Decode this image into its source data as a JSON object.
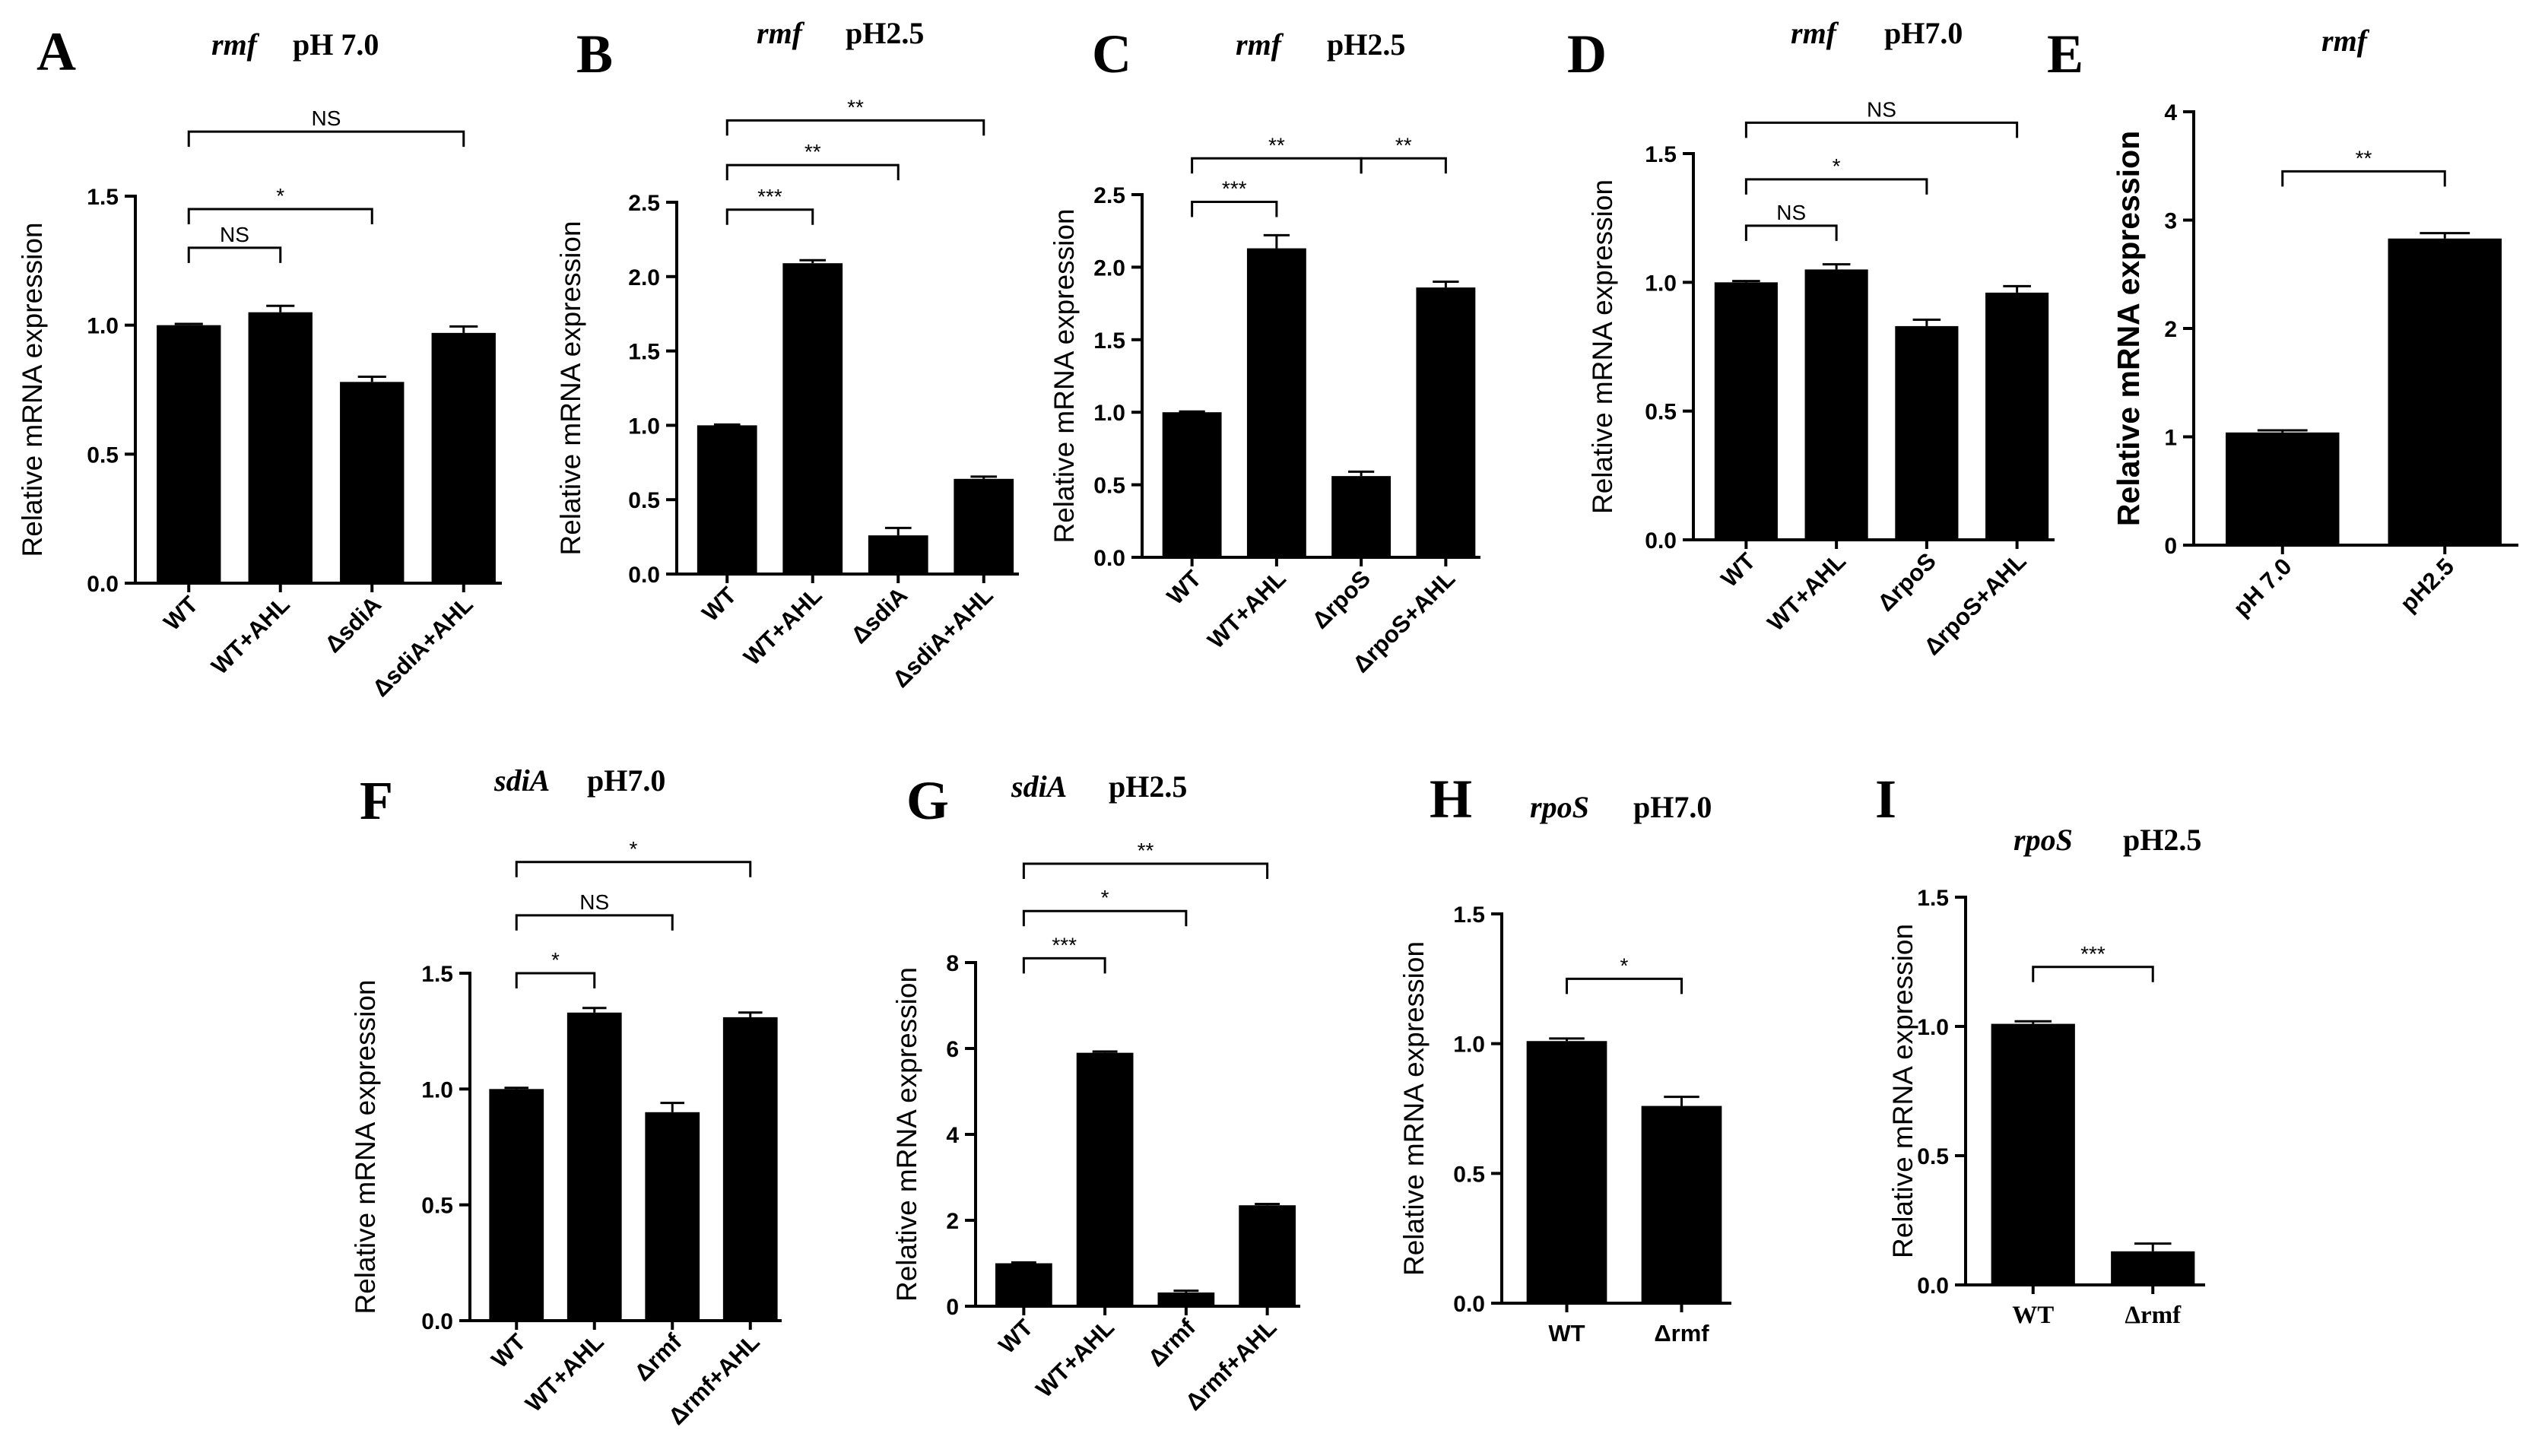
{
  "chart_data": [
    {
      "type": "bar",
      "letter": "A",
      "gene": "rmf",
      "condition": "pH 7.0",
      "categories": [
        "WT",
        "WT+AHL",
        "ΔsdiA",
        "ΔsdiA+AHL"
      ],
      "values": [
        1.0,
        1.05,
        0.78,
        0.97
      ],
      "errors": [
        0.005,
        0.025,
        0.02,
        0.025
      ],
      "ylabel": "Relative mRNA expression",
      "ylim": [
        0,
        1.5
      ],
      "yticks": [
        "0.0",
        "0.5",
        "1.0",
        "1.5"
      ],
      "comparisons": [
        {
          "from": 0,
          "to": 1,
          "label": "NS",
          "level": 1.3
        },
        {
          "from": 0,
          "to": 2,
          "label": "*",
          "level": 1.45
        },
        {
          "from": 0,
          "to": 3,
          "label": "NS",
          "level": 1.75
        }
      ]
    },
    {
      "type": "bar",
      "letter": "B",
      "gene": "rmf",
      "condition": "pH2.5",
      "categories": [
        "WT",
        "WT+AHL",
        "ΔsdiA",
        "ΔsdiA+AHL"
      ],
      "values": [
        1.0,
        2.09,
        0.26,
        0.64
      ],
      "errors": [
        0.005,
        0.02,
        0.05,
        0.015
      ],
      "ylabel": "Relative mRNA expression",
      "ylim": [
        0,
        2.5
      ],
      "yticks": [
        "0.0",
        "0.5",
        "1.0",
        "1.5",
        "2.0",
        "2.5"
      ],
      "comparisons": [
        {
          "from": 0,
          "to": 1,
          "label": "***",
          "level": 2.45
        },
        {
          "from": 0,
          "to": 2,
          "label": "**",
          "level": 2.75
        },
        {
          "from": 0,
          "to": 3,
          "label": "**",
          "level": 3.05
        }
      ]
    },
    {
      "type": "bar",
      "letter": "C",
      "gene": "rmf",
      "condition": "pH2.5",
      "categories": [
        "WT",
        "WT+AHL",
        "ΔrpoS",
        "ΔrpoS+AHL"
      ],
      "values": [
        1.0,
        2.13,
        0.56,
        1.86
      ],
      "errors": [
        0.005,
        0.09,
        0.03,
        0.04
      ],
      "ylabel": "Relative mRNA expression",
      "ylim": [
        0,
        2.5
      ],
      "yticks": [
        "0.0",
        "0.5",
        "1.0",
        "1.5",
        "2.0",
        "2.5"
      ],
      "comparisons": [
        {
          "from": 0,
          "to": 1,
          "label": "***",
          "level": 2.45
        },
        {
          "from": 0,
          "to": 2,
          "label": "**",
          "level": 2.75
        },
        {
          "from": 2,
          "to": 3,
          "label": "**",
          "level": 2.75
        }
      ]
    },
    {
      "type": "bar",
      "letter": "D",
      "gene": "rmf",
      "condition": "pH7.0",
      "categories": [
        "WT",
        "WT+AHL",
        "ΔrpoS",
        "ΔrpoS+AHL"
      ],
      "values": [
        1.0,
        1.05,
        0.83,
        0.96
      ],
      "errors": [
        0.005,
        0.02,
        0.025,
        0.025
      ],
      "ylabel": "Relative mRNA expression",
      "ylim": [
        0,
        1.5
      ],
      "yticks": [
        "0.0",
        "0.5",
        "1.0",
        "1.5"
      ],
      "comparisons": [
        {
          "from": 0,
          "to": 1,
          "label": "NS",
          "level": 1.22
        },
        {
          "from": 0,
          "to": 2,
          "label": "*",
          "level": 1.4
        },
        {
          "from": 0,
          "to": 3,
          "label": "NS",
          "level": 1.62
        }
      ]
    },
    {
      "type": "bar",
      "letter": "E",
      "gene": "rmf",
      "condition": "",
      "categories": [
        "pH 7.0",
        "pH2.5"
      ],
      "values": [
        1.04,
        2.83
      ],
      "errors": [
        0.02,
        0.05
      ],
      "ylabel": "Relative mRNA expression",
      "ylim": [
        0,
        4
      ],
      "yticks": [
        "0",
        "1",
        "2",
        "3",
        "4"
      ],
      "comparisons": [
        {
          "from": 0,
          "to": 1,
          "label": "**",
          "level": 3.45
        }
      ]
    },
    {
      "type": "bar",
      "letter": "F",
      "gene": "sdiA",
      "condition": "pH7.0",
      "categories": [
        "WT",
        "WT+AHL",
        "Δrmf",
        "Δrmf+AHL"
      ],
      "values": [
        1.0,
        1.33,
        0.9,
        1.31
      ],
      "errors": [
        0.005,
        0.02,
        0.04,
        0.02
      ],
      "ylabel": "Relative mRNA expression",
      "ylim": [
        0,
        1.5
      ],
      "yticks": [
        "0.0",
        "0.5",
        "1.0",
        "1.5"
      ],
      "comparisons": [
        {
          "from": 0,
          "to": 1,
          "label": "*",
          "level": 1.5
        },
        {
          "from": 0,
          "to": 2,
          "label": "NS",
          "level": 1.75
        },
        {
          "from": 0,
          "to": 3,
          "label": "*",
          "level": 1.98
        }
      ]
    },
    {
      "type": "bar",
      "letter": "G",
      "gene": "sdiA",
      "condition": "pH2.5",
      "categories": [
        "WT",
        "WT+AHL",
        "Δrmf",
        "Δrmf+AHL"
      ],
      "values": [
        1.0,
        5.9,
        0.32,
        2.35
      ],
      "errors": [
        0.02,
        0.03,
        0.04,
        0.03
      ],
      "ylabel": "Relative mRNA expression",
      "ylim": [
        0,
        8
      ],
      "yticks": [
        "0",
        "2",
        "4",
        "6",
        "8"
      ],
      "comparisons": [
        {
          "from": 0,
          "to": 1,
          "label": "***",
          "level": 8.1
        },
        {
          "from": 0,
          "to": 2,
          "label": "*",
          "level": 9.2
        },
        {
          "from": 0,
          "to": 3,
          "label": "**",
          "level": 10.3
        }
      ]
    },
    {
      "type": "bar",
      "letter": "H",
      "gene": "rpoS",
      "condition": "pH7.0",
      "categories": [
        "WT",
        "Δrmf"
      ],
      "values": [
        1.01,
        0.76
      ],
      "errors": [
        0.01,
        0.035
      ],
      "ylabel": "Relative mRNA expression",
      "ylim": [
        0,
        1.5
      ],
      "yticks": [
        "0.0",
        "0.5",
        "1.0",
        "1.5"
      ],
      "comparisons": [
        {
          "from": 0,
          "to": 1,
          "label": "*",
          "level": 1.25
        }
      ]
    },
    {
      "type": "bar",
      "letter": "I",
      "gene": "rpoS",
      "condition": "pH2.5",
      "categories": [
        "WT",
        "Δrmf"
      ],
      "values": [
        1.01,
        0.13
      ],
      "errors": [
        0.01,
        0.03
      ],
      "ylabel": "Relative mRNA expression",
      "ylim": [
        0,
        1.5
      ],
      "yticks": [
        "0.0",
        "0.5",
        "1.0",
        "1.5"
      ],
      "comparisons": [
        {
          "from": 0,
          "to": 1,
          "label": "***",
          "level": 1.23
        }
      ]
    }
  ]
}
